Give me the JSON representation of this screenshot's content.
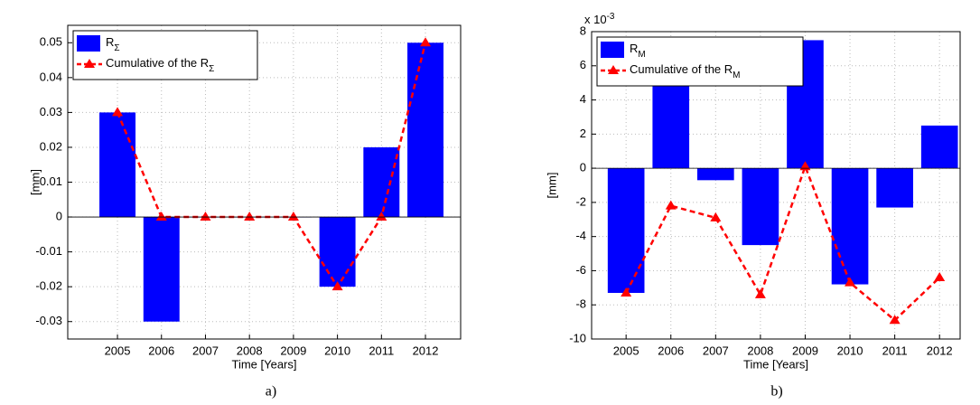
{
  "chart_data": [
    {
      "type": "bar",
      "caption": "a)",
      "x_label": "Time [Years]",
      "y_label": "[mm]",
      "categories": [
        "2005",
        "2006",
        "2007",
        "2008",
        "2009",
        "2010",
        "2011",
        "2012"
      ],
      "series": [
        {
          "name": "R",
          "name_sub": "Σ",
          "type": "bar",
          "color": "#0000ff",
          "values": [
            0.03,
            -0.03,
            0,
            0,
            0,
            -0.02,
            0.02,
            0.05
          ]
        },
        {
          "name": "Cumulative of the R",
          "name_sub": "Σ",
          "type": "line",
          "color": "#ff0000",
          "values": [
            0.03,
            0,
            0,
            0,
            0,
            -0.02,
            0,
            0.05
          ]
        }
      ],
      "ylim": [
        -0.035,
        0.055
      ],
      "yticks": [
        -0.03,
        -0.02,
        -0.01,
        0,
        0.01,
        0.02,
        0.03,
        0.04,
        0.05
      ],
      "grid": true,
      "legend": "northwest"
    },
    {
      "type": "bar",
      "caption": "b)",
      "x_label": "Time [Years]",
      "y_label": "[mm]",
      "y_multiplier": "x 10",
      "y_multiplier_exp": "-3",
      "categories": [
        "2005",
        "2006",
        "2007",
        "2008",
        "2009",
        "2010",
        "2011",
        "2012"
      ],
      "series": [
        {
          "name": "R",
          "name_sub": "M",
          "type": "bar",
          "color": "#0000ff",
          "values": [
            -7.3,
            5.1,
            -0.7,
            -4.5,
            7.5,
            -6.8,
            -2.3,
            2.5
          ]
        },
        {
          "name": "Cumulative of the R",
          "name_sub": "M",
          "type": "line",
          "color": "#ff0000",
          "values": [
            -7.3,
            -2.2,
            -2.9,
            -7.4,
            0.1,
            -6.7,
            -8.9,
            -6.4
          ]
        }
      ],
      "ylim": [
        -10,
        8
      ],
      "yticks": [
        -10,
        -8,
        -6,
        -4,
        -2,
        0,
        2,
        4,
        6,
        8
      ],
      "grid": true,
      "legend": "northwest"
    }
  ]
}
